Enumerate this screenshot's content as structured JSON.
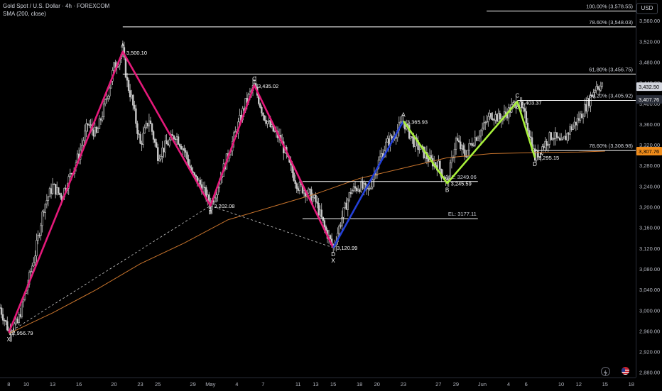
{
  "header": {
    "symbol_line": "Gold Spot / U.S. Dollar · 4h · FOREXCOM",
    "indicator_line": "SMA (200, close)",
    "currency_button": "USD"
  },
  "colors": {
    "background": "#000000",
    "candle": "#c8c8c8",
    "sma": "#c8742c",
    "pattern_pink": "#e4197a",
    "pattern_blue": "#2340d8",
    "pattern_lime": "#a8f03a",
    "level_line": "#ffffff",
    "price_tag_current": "#d1d4dc",
    "price_tag_sma": "#f08c1a"
  },
  "chart_data": {
    "type": "candlestick",
    "title": "Gold Spot / U.S. Dollar · 4h · FOREXCOM",
    "ylim": [
      2870,
      3600
    ],
    "y_ticks": [
      2880,
      2920,
      2960,
      3000,
      3040,
      3080,
      3120,
      3160,
      3200,
      3240,
      3280,
      3320,
      3360,
      3400,
      3440,
      3480,
      3520,
      3560
    ],
    "y_tick_labels": [
      "2,880.00",
      "2,920.00",
      "2,960.00",
      "3,000.00",
      "3,040.00",
      "3,080.00",
      "3,120.00",
      "3,160.00",
      "3,200.00",
      "3,240.00",
      "3,280.00",
      "3,320.00",
      "3,360.00",
      "3,400.00",
      "3,440.00",
      "3,480.00",
      "3,520.00",
      "3,560.00"
    ],
    "x_ticks": [
      {
        "label": "8",
        "t": 0
      },
      {
        "label": "10",
        "t": 2
      },
      {
        "label": "13",
        "t": 5
      },
      {
        "label": "16",
        "t": 8
      },
      {
        "label": "20",
        "t": 12
      },
      {
        "label": "23",
        "t": 15
      },
      {
        "label": "25",
        "t": 17
      },
      {
        "label": "29",
        "t": 21
      },
      {
        "label": "May",
        "t": 23
      },
      {
        "label": "4",
        "t": 26
      },
      {
        "label": "7",
        "t": 29
      },
      {
        "label": "11",
        "t": 33
      },
      {
        "label": "13",
        "t": 35
      },
      {
        "label": "15",
        "t": 37
      },
      {
        "label": "18",
        "t": 40
      },
      {
        "label": "20",
        "t": 42
      },
      {
        "label": "23",
        "t": 45
      },
      {
        "label": "27",
        "t": 49
      },
      {
        "label": "29",
        "t": 51
      },
      {
        "label": "Jun",
        "t": 54
      },
      {
        "label": "4",
        "t": 57
      },
      {
        "label": "6",
        "t": 59
      },
      {
        "label": "10",
        "t": 63
      },
      {
        "label": "12",
        "t": 65
      },
      {
        "label": "15",
        "t": 68
      },
      {
        "label": "18",
        "t": 71
      }
    ],
    "x_range": [
      -1,
      71.5
    ],
    "price_path": [
      [
        -1,
        3005
      ],
      [
        0,
        2960
      ],
      [
        1,
        2975
      ],
      [
        2,
        3040
      ],
      [
        3,
        3110
      ],
      [
        4,
        3200
      ],
      [
        5,
        3240
      ],
      [
        6,
        3220
      ],
      [
        7,
        3260
      ],
      [
        8,
        3300
      ],
      [
        9,
        3360
      ],
      [
        10,
        3340
      ],
      [
        11,
        3400
      ],
      [
        12,
        3470
      ],
      [
        13,
        3500
      ],
      [
        13.5,
        3440
      ],
      [
        14,
        3410
      ],
      [
        15,
        3320
      ],
      [
        16,
        3370
      ],
      [
        17,
        3300
      ],
      [
        18,
        3320
      ],
      [
        19,
        3340
      ],
      [
        20,
        3310
      ],
      [
        21,
        3260
      ],
      [
        22,
        3240
      ],
      [
        23,
        3202
      ],
      [
        24,
        3250
      ],
      [
        25,
        3300
      ],
      [
        26,
        3350
      ],
      [
        27,
        3400
      ],
      [
        28,
        3435
      ],
      [
        29,
        3380
      ],
      [
        30,
        3350
      ],
      [
        31,
        3330
      ],
      [
        32,
        3280
      ],
      [
        33,
        3240
      ],
      [
        34,
        3230
      ],
      [
        35,
        3210
      ],
      [
        36,
        3160
      ],
      [
        37,
        3121
      ],
      [
        38,
        3180
      ],
      [
        39,
        3230
      ],
      [
        40,
        3240
      ],
      [
        41,
        3230
      ],
      [
        42,
        3280
      ],
      [
        43,
        3320
      ],
      [
        44,
        3340
      ],
      [
        45,
        3366
      ],
      [
        46,
        3330
      ],
      [
        47,
        3310
      ],
      [
        48,
        3290
      ],
      [
        49,
        3280
      ],
      [
        50,
        3245
      ],
      [
        51,
        3330
      ],
      [
        52,
        3300
      ],
      [
        53,
        3330
      ],
      [
        54,
        3350
      ],
      [
        55,
        3380
      ],
      [
        56,
        3370
      ],
      [
        57,
        3385
      ],
      [
        58,
        3404
      ],
      [
        59,
        3370
      ],
      [
        60,
        3295
      ],
      [
        61,
        3320
      ],
      [
        62,
        3340
      ],
      [
        63,
        3320
      ],
      [
        64,
        3350
      ],
      [
        65,
        3370
      ],
      [
        66,
        3400
      ],
      [
        67,
        3435
      ],
      [
        67.8,
        3432.5
      ]
    ],
    "sma_200": [
      [
        0,
        2955
      ],
      [
        5,
        2995
      ],
      [
        10,
        3040
      ],
      [
        15,
        3090
      ],
      [
        20,
        3130
      ],
      [
        25,
        3175
      ],
      [
        30,
        3200
      ],
      [
        35,
        3225
      ],
      [
        40,
        3255
      ],
      [
        45,
        3275
      ],
      [
        50,
        3295
      ],
      [
        55,
        3303
      ],
      [
        60,
        3305
      ],
      [
        65,
        3306
      ],
      [
        68,
        3307.76
      ]
    ],
    "patterns": [
      {
        "name": "pink",
        "color": "#e4197a",
        "points": [
          [
            0,
            2956.79
          ],
          [
            13,
            3500.1
          ],
          [
            23,
            3202.08
          ],
          [
            28,
            3435.02
          ],
          [
            37,
            3120.99
          ]
        ]
      },
      {
        "name": "blue",
        "color": "#2340d8",
        "points": [
          [
            37,
            3120.99
          ],
          [
            45,
            3365.93
          ]
        ]
      },
      {
        "name": "lime",
        "color": "#a8f03a",
        "points": [
          [
            45,
            3365.93
          ],
          [
            50,
            3245.59
          ],
          [
            58,
            3403.37
          ],
          [
            60,
            3295.15
          ]
        ]
      }
    ],
    "pattern_labels": [
      {
        "letter": "X",
        "t": 0,
        "p": 2956.79,
        "value": "2,956.79",
        "pos": "below"
      },
      {
        "letter": "A",
        "t": 13,
        "p": 3500.1,
        "value": "3,500.10",
        "pos": "above"
      },
      {
        "letter": "B",
        "t": 23,
        "p": 3202.08,
        "value": "3,202.08",
        "pos": "below"
      },
      {
        "letter": "C",
        "t": 28,
        "p": 3435.02,
        "value": "3,435.02",
        "pos": "above"
      },
      {
        "letter": "D\nX",
        "t": 37,
        "p": 3120.99,
        "value": "3,120.99",
        "pos": "below"
      },
      {
        "letter": "A",
        "t": 45,
        "p": 3365.93,
        "value": "3,365.93",
        "pos": "above"
      },
      {
        "letter": "B",
        "t": 50,
        "p": 3245.59,
        "value": "3,245.59",
        "pos": "below"
      },
      {
        "letter": "C",
        "t": 58,
        "p": 3403.37,
        "value": "3,403.37",
        "pos": "above"
      },
      {
        "letter": "D",
        "t": 60,
        "p": 3295.15,
        "value": "3,295.15",
        "pos": "below"
      }
    ],
    "dashed_lines": [
      [
        [
          0,
          2956.79
        ],
        [
          23,
          3202.08
        ]
      ],
      [
        [
          23,
          3202.08
        ],
        [
          37,
          3120.99
        ]
      ]
    ],
    "fib_levels": [
      {
        "label": "100.00% (3,578.55)",
        "price": 3578.55,
        "t_start": 54.5
      },
      {
        "label": "78.60% (3,548.03)",
        "price": 3548.03,
        "t_start": 13
      },
      {
        "label": "61.80% (3,456.75)",
        "price": 3456.75,
        "t_start": 13
      },
      {
        "label": "38.20% (3,405.92)",
        "price": 3405.92,
        "t_start": 58
      },
      {
        "label": "78.60% (3,308.98)",
        "price": 3308.98,
        "t_start": 60
      }
    ],
    "horizontal_levels": [
      {
        "label": "WALL: 3249.06",
        "price": 3249.06,
        "t_start": 33.5,
        "t_end": 53.5
      },
      {
        "label": "EL: 3177.11",
        "price": 3177.11,
        "t_start": 33.5,
        "t_end": 53.5
      }
    ],
    "price_tags": [
      {
        "value": "3,432.50",
        "price": 3432.5,
        "style": "current"
      },
      {
        "value": "3,407.76",
        "price": 3407.76,
        "style": "level"
      },
      {
        "value": "3,307.76",
        "price": 3307.76,
        "style": "sma"
      }
    ]
  }
}
